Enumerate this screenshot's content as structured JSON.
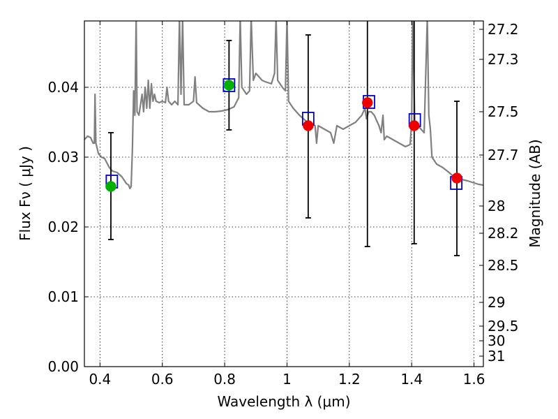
{
  "chart_data": {
    "type": "scatter",
    "xlabel": "Wavelength  λ (μm)",
    "ylabel": "Flux  Fν  ( μJy )",
    "y2label": "Magnitude (AB)",
    "xlim": [
      0.35,
      1.63
    ],
    "ylim": [
      0.0,
      0.0495
    ],
    "grid": true,
    "x_ticks": [
      0.4,
      0.6,
      0.8,
      1.0,
      1.2,
      1.4,
      1.6
    ],
    "x_tick_labels": [
      "0.4",
      "0.6",
      "0.8",
      "1",
      "1.2",
      "1.4",
      "1.6"
    ],
    "y_ticks": [
      0.0,
      0.01,
      0.02,
      0.03,
      0.04
    ],
    "y_tick_labels": [
      "0.00",
      "0.01",
      "0.02",
      "0.03",
      "0.04"
    ],
    "mag_ticks": [
      {
        "flux": 0.0483,
        "label": "27.2"
      },
      {
        "flux": 0.044,
        "label": "27.3"
      },
      {
        "flux": 0.0365,
        "label": "27.5"
      },
      {
        "flux": 0.0303,
        "label": "27.7"
      },
      {
        "flux": 0.023,
        "label": "28"
      },
      {
        "flux": 0.0191,
        "label": "28.2"
      },
      {
        "flux": 0.0145,
        "label": "28.5"
      },
      {
        "flux": 0.0092,
        "label": "29"
      },
      {
        "flux": 0.0058,
        "label": "29.5"
      },
      {
        "flux": 0.0037,
        "label": "30"
      },
      {
        "flux": 0.0015,
        "label": "31"
      }
    ],
    "colors": {
      "model": "#808080",
      "errorbar": "#000000",
      "square": "#0000cc",
      "green": "#00b000",
      "red": "#ee0000",
      "grid": "#000000"
    },
    "model_spectrum": [
      [
        0.35,
        0.0325
      ],
      [
        0.36,
        0.033
      ],
      [
        0.37,
        0.0328
      ],
      [
        0.378,
        0.032
      ],
      [
        0.382,
        0.032
      ],
      [
        0.384,
        0.039
      ],
      [
        0.387,
        0.032
      ],
      [
        0.395,
        0.0305
      ],
      [
        0.405,
        0.03
      ],
      [
        0.415,
        0.0298
      ],
      [
        0.43,
        0.0285
      ],
      [
        0.44,
        0.028
      ],
      [
        0.455,
        0.0278
      ],
      [
        0.47,
        0.0272
      ],
      [
        0.485,
        0.0262
      ],
      [
        0.492,
        0.026
      ],
      [
        0.496,
        0.0255
      ],
      [
        0.5,
        0.0258
      ],
      [
        0.504,
        0.031
      ],
      [
        0.508,
        0.0395
      ],
      [
        0.512,
        0.036
      ],
      [
        0.516,
        0.05
      ],
      [
        0.519,
        0.0365
      ],
      [
        0.525,
        0.036
      ],
      [
        0.535,
        0.039
      ],
      [
        0.54,
        0.0365
      ],
      [
        0.545,
        0.04
      ],
      [
        0.55,
        0.037
      ],
      [
        0.555,
        0.041
      ],
      [
        0.56,
        0.037
      ],
      [
        0.565,
        0.0405
      ],
      [
        0.57,
        0.038
      ],
      [
        0.575,
        0.039
      ],
      [
        0.58,
        0.038
      ],
      [
        0.59,
        0.0378
      ],
      [
        0.6,
        0.038
      ],
      [
        0.61,
        0.0378
      ],
      [
        0.615,
        0.04
      ],
      [
        0.62,
        0.038
      ],
      [
        0.63,
        0.0375
      ],
      [
        0.64,
        0.038
      ],
      [
        0.65,
        0.0375
      ],
      [
        0.655,
        0.05
      ],
      [
        0.66,
        0.039
      ],
      [
        0.665,
        0.05
      ],
      [
        0.67,
        0.0375
      ],
      [
        0.685,
        0.0375
      ],
      [
        0.7,
        0.038
      ],
      [
        0.705,
        0.0415
      ],
      [
        0.71,
        0.0378
      ],
      [
        0.73,
        0.037
      ],
      [
        0.75,
        0.0365
      ],
      [
        0.77,
        0.0365
      ],
      [
        0.79,
        0.0366
      ],
      [
        0.81,
        0.0368
      ],
      [
        0.83,
        0.0372
      ],
      [
        0.845,
        0.0385
      ],
      [
        0.85,
        0.05
      ],
      [
        0.855,
        0.04
      ],
      [
        0.87,
        0.039
      ],
      [
        0.88,
        0.0395
      ],
      [
        0.885,
        0.05
      ],
      [
        0.892,
        0.041
      ],
      [
        0.9,
        0.042
      ],
      [
        0.91,
        0.0415
      ],
      [
        0.92,
        0.041
      ],
      [
        0.93,
        0.0408
      ],
      [
        0.95,
        0.0405
      ],
      [
        0.96,
        0.042
      ],
      [
        0.965,
        0.05
      ],
      [
        0.97,
        0.041
      ],
      [
        0.985,
        0.04
      ],
      [
        0.995,
        0.0395
      ],
      [
        1.0,
        0.05
      ],
      [
        1.005,
        0.038
      ],
      [
        1.02,
        0.037
      ],
      [
        1.04,
        0.036
      ],
      [
        1.06,
        0.0352
      ],
      [
        1.08,
        0.0348
      ],
      [
        1.09,
        0.0345
      ],
      [
        1.095,
        0.032
      ],
      [
        1.1,
        0.0345
      ],
      [
        1.12,
        0.034
      ],
      [
        1.14,
        0.0335
      ],
      [
        1.15,
        0.032
      ],
      [
        1.16,
        0.0345
      ],
      [
        1.18,
        0.034
      ],
      [
        1.2,
        0.0345
      ],
      [
        1.22,
        0.035
      ],
      [
        1.24,
        0.036
      ],
      [
        1.25,
        0.037
      ],
      [
        1.255,
        0.0355
      ],
      [
        1.262,
        0.0365
      ],
      [
        1.27,
        0.0365
      ],
      [
        1.28,
        0.036
      ],
      [
        1.295,
        0.0345
      ],
      [
        1.302,
        0.0335
      ],
      [
        1.308,
        0.036
      ],
      [
        1.312,
        0.0325
      ],
      [
        1.32,
        0.033
      ],
      [
        1.34,
        0.0325
      ],
      [
        1.36,
        0.032
      ],
      [
        1.38,
        0.0315
      ],
      [
        1.395,
        0.0318
      ],
      [
        1.4,
        0.035
      ],
      [
        1.403,
        0.05
      ],
      [
        1.41,
        0.035
      ],
      [
        1.42,
        0.0345
      ],
      [
        1.43,
        0.034
      ],
      [
        1.44,
        0.0335
      ],
      [
        1.45,
        0.05
      ],
      [
        1.455,
        0.036
      ],
      [
        1.46,
        0.034
      ],
      [
        1.465,
        0.03
      ],
      [
        1.48,
        0.029
      ],
      [
        1.5,
        0.0285
      ],
      [
        1.52,
        0.0278
      ],
      [
        1.54,
        0.027
      ],
      [
        1.56,
        0.0268
      ],
      [
        1.58,
        0.0266
      ],
      [
        1.6,
        0.0263
      ],
      [
        1.615,
        0.0261
      ],
      [
        1.63,
        0.026
      ]
    ],
    "photometry": [
      {
        "x": 0.435,
        "y": 0.0258,
        "err_low": 0.0182,
        "err_high": 0.0335,
        "color": "green"
      },
      {
        "x": 0.814,
        "y": 0.0403,
        "err_low": 0.0339,
        "err_high": 0.0467,
        "color": "green"
      },
      {
        "x": 1.068,
        "y": 0.0345,
        "err_low": 0.0213,
        "err_high": 0.0475,
        "color": "red"
      },
      {
        "x": 1.258,
        "y": 0.0378,
        "err_low": 0.0172,
        "err_high": 0.05,
        "color": "red"
      },
      {
        "x": 1.408,
        "y": 0.0345,
        "err_low": 0.0176,
        "err_high": 0.05,
        "color": "red"
      },
      {
        "x": 1.545,
        "y": 0.027,
        "err_low": 0.0159,
        "err_high": 0.038,
        "color": "red"
      }
    ],
    "model_points": [
      {
        "x": 0.438,
        "y": 0.0265
      },
      {
        "x": 0.814,
        "y": 0.0403
      },
      {
        "x": 1.068,
        "y": 0.0355
      },
      {
        "x": 1.263,
        "y": 0.0379
      },
      {
        "x": 1.41,
        "y": 0.0353
      },
      {
        "x": 1.543,
        "y": 0.0263
      }
    ]
  }
}
